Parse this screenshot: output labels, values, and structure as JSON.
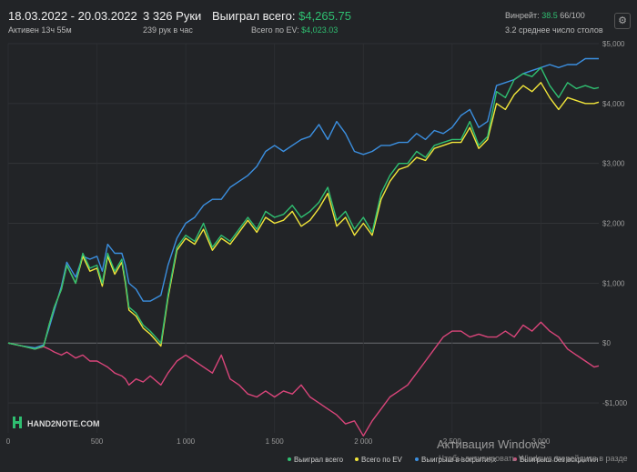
{
  "header": {
    "dates": "18.03.2022 - 20.03.2022",
    "active": "Активен 13ч 55м",
    "hands": "3 326 Руки",
    "hands_per_hour": "239 рук в час",
    "won_label": "Выиграл всего:",
    "won_value": "$4,265.75",
    "ev_label": "Всего по EV:",
    "ev_value": "$4,023.03",
    "winrate_label": "Винрейт:",
    "winrate_value": "38.5",
    "winrate_suffix": "66/100",
    "tables": "3.2 среднее число столов",
    "settings_icon": "gear-icon"
  },
  "logo": {
    "text": "HAND2NOTE.COM"
  },
  "watermark": {
    "line1": "Активация Windows",
    "line2": "Чтобы активировать Windows, перейдите в разде"
  },
  "chart_data": {
    "type": "line",
    "x_tick_labels": [
      "0",
      "500",
      "1 000",
      "1 500",
      "2 000",
      "2 500",
      "3 000"
    ],
    "x_ticks": [
      0,
      500,
      1000,
      1500,
      2000,
      2500,
      3000
    ],
    "y_tick_labels": [
      "$5,000",
      "$4,000",
      "$3,000",
      "$2,000",
      "$1,000",
      "$0",
      "-$1,000"
    ],
    "y_ticks": [
      5000,
      4000,
      3000,
      2000,
      1000,
      0,
      -1000
    ],
    "xlim": [
      0,
      3326
    ],
    "ylim": [
      -1500,
      5000
    ],
    "grid": true,
    "legend_position": "bottom-right",
    "series": [
      {
        "name": "Выиграл всего",
        "color": "#2fbf71",
        "x": [
          0,
          80,
          150,
          200,
          230,
          260,
          300,
          330,
          380,
          420,
          460,
          500,
          530,
          560,
          600,
          640,
          660,
          680,
          720,
          760,
          800,
          860,
          900,
          950,
          1000,
          1050,
          1100,
          1150,
          1200,
          1250,
          1300,
          1350,
          1400,
          1450,
          1500,
          1550,
          1600,
          1650,
          1700,
          1750,
          1800,
          1850,
          1900,
          1950,
          2000,
          2050,
          2100,
          2150,
          2200,
          2250,
          2300,
          2350,
          2400,
          2450,
          2500,
          2550,
          2600,
          2650,
          2700,
          2750,
          2800,
          2850,
          2900,
          2950,
          3000,
          3050,
          3100,
          3150,
          3200,
          3250,
          3300,
          3326
        ],
        "y": [
          0,
          -50,
          -100,
          -50,
          300,
          600,
          900,
          1300,
          1000,
          1500,
          1250,
          1300,
          1000,
          1500,
          1200,
          1400,
          1050,
          600,
          500,
          300,
          200,
          0,
          800,
          1600,
          1800,
          1700,
          2000,
          1600,
          1800,
          1700,
          1900,
          2100,
          1900,
          2200,
          2100,
          2150,
          2300,
          2100,
          2200,
          2350,
          2600,
          2050,
          2200,
          1900,
          2100,
          1850,
          2500,
          2800,
          3000,
          3000,
          3200,
          3100,
          3300,
          3350,
          3400,
          3400,
          3700,
          3300,
          3450,
          4200,
          4100,
          4400,
          4500,
          4450,
          4600,
          4300,
          4100,
          4350,
          4250,
          4300,
          4250,
          4265.75
        ]
      },
      {
        "name": "Всего по EV",
        "color": "#f2e63a",
        "x": [
          0,
          80,
          150,
          200,
          230,
          260,
          300,
          330,
          380,
          420,
          460,
          500,
          530,
          560,
          600,
          640,
          660,
          680,
          720,
          760,
          800,
          860,
          900,
          950,
          1000,
          1050,
          1100,
          1150,
          1200,
          1250,
          1300,
          1350,
          1400,
          1450,
          1500,
          1550,
          1600,
          1650,
          1700,
          1750,
          1800,
          1850,
          1900,
          1950,
          2000,
          2050,
          2100,
          2150,
          2200,
          2250,
          2300,
          2350,
          2400,
          2450,
          2500,
          2550,
          2600,
          2650,
          2700,
          2750,
          2800,
          2850,
          2900,
          2950,
          3000,
          3050,
          3100,
          3150,
          3200,
          3250,
          3300,
          3326
        ],
        "y": [
          0,
          -50,
          -100,
          -50,
          300,
          600,
          900,
          1300,
          1000,
          1450,
          1200,
          1250,
          950,
          1450,
          1150,
          1350,
          1000,
          550,
          450,
          250,
          150,
          -50,
          750,
          1550,
          1750,
          1650,
          1900,
          1550,
          1750,
          1650,
          1850,
          2050,
          1850,
          2100,
          2000,
          2050,
          2200,
          1950,
          2050,
          2250,
          2500,
          1950,
          2100,
          1800,
          2000,
          1800,
          2400,
          2700,
          2900,
          2950,
          3100,
          3050,
          3250,
          3300,
          3350,
          3350,
          3600,
          3250,
          3400,
          4000,
          3900,
          4150,
          4300,
          4200,
          4350,
          4100,
          3900,
          4100,
          4050,
          4000,
          4000,
          4023.03
        ]
      },
      {
        "name": "Выигрыш в вскрытиях",
        "color": "#3b8fe0",
        "x": [
          0,
          80,
          150,
          200,
          230,
          260,
          300,
          330,
          380,
          420,
          460,
          500,
          530,
          560,
          600,
          640,
          660,
          680,
          720,
          760,
          800,
          860,
          900,
          950,
          1000,
          1050,
          1100,
          1150,
          1200,
          1250,
          1300,
          1350,
          1400,
          1450,
          1500,
          1550,
          1600,
          1650,
          1700,
          1750,
          1800,
          1850,
          1900,
          1950,
          2000,
          2050,
          2100,
          2150,
          2200,
          2250,
          2300,
          2350,
          2400,
          2450,
          2500,
          2550,
          2600,
          2650,
          2700,
          2750,
          2800,
          2850,
          2900,
          2950,
          3000,
          3050,
          3100,
          3150,
          3200,
          3250,
          3300,
          3326
        ],
        "y": [
          0,
          -50,
          -80,
          -30,
          250,
          550,
          950,
          1350,
          1100,
          1450,
          1400,
          1450,
          1200,
          1650,
          1500,
          1500,
          1300,
          1000,
          900,
          700,
          700,
          800,
          1300,
          1750,
          2000,
          2100,
          2300,
          2400,
          2400,
          2600,
          2700,
          2800,
          2950,
          3200,
          3300,
          3200,
          3300,
          3400,
          3450,
          3650,
          3400,
          3700,
          3500,
          3200,
          3150,
          3200,
          3300,
          3300,
          3350,
          3350,
          3500,
          3400,
          3550,
          3500,
          3600,
          3800,
          3900,
          3600,
          3700,
          4300,
          4350,
          4400,
          4500,
          4550,
          4600,
          4650,
          4600,
          4650,
          4650,
          4750,
          4750,
          4750
        ]
      },
      {
        "name": "Выигрыш без вскрытия",
        "color": "#d9457a",
        "x": [
          0,
          80,
          150,
          200,
          230,
          260,
          300,
          330,
          380,
          420,
          460,
          500,
          530,
          560,
          600,
          640,
          660,
          680,
          720,
          760,
          800,
          860,
          900,
          950,
          1000,
          1050,
          1100,
          1150,
          1200,
          1250,
          1300,
          1350,
          1400,
          1450,
          1500,
          1550,
          1600,
          1650,
          1700,
          1750,
          1800,
          1850,
          1900,
          1950,
          2000,
          2050,
          2100,
          2150,
          2200,
          2250,
          2300,
          2350,
          2400,
          2450,
          2500,
          2550,
          2600,
          2650,
          2700,
          2750,
          2800,
          2850,
          2900,
          2950,
          3000,
          3050,
          3100,
          3150,
          3200,
          3250,
          3300,
          3326
        ],
        "y": [
          0,
          -50,
          -100,
          -60,
          -100,
          -150,
          -200,
          -150,
          -250,
          -200,
          -300,
          -300,
          -350,
          -400,
          -500,
          -550,
          -600,
          -700,
          -600,
          -650,
          -550,
          -700,
          -500,
          -300,
          -200,
          -300,
          -400,
          -500,
          -200,
          -600,
          -700,
          -850,
          -900,
          -800,
          -900,
          -800,
          -850,
          -700,
          -900,
          -1000,
          -1100,
          -1200,
          -1350,
          -1300,
          -1550,
          -1300,
          -1100,
          -900,
          -800,
          -700,
          -500,
          -300,
          -100,
          100,
          200,
          200,
          100,
          150,
          100,
          100,
          200,
          100,
          300,
          200,
          350,
          200,
          100,
          -100,
          -200,
          -300,
          -400,
          -380
        ]
      }
    ]
  }
}
